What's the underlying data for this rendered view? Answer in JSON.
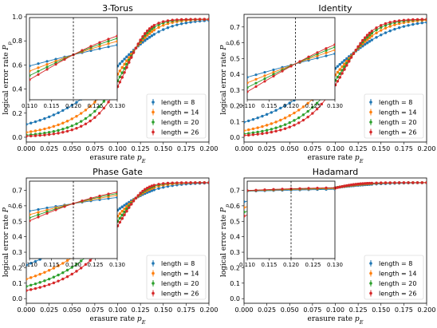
{
  "chart_data": [
    {
      "type": "line",
      "title": "3-Torus",
      "xlabel": "erasure rate p_E",
      "ylabel": "logical error rate P_p",
      "xlim": [
        0.0,
        0.2
      ],
      "ylim": [
        -0.04,
        1.02
      ],
      "xticks": [
        "0.000",
        "0.025",
        "0.050",
        "0.075",
        "0.100",
        "0.125",
        "0.150",
        "0.175",
        "0.200"
      ],
      "yticks": [
        "0.0",
        "0.2",
        "0.4",
        "0.6",
        "0.8",
        "1.0"
      ],
      "legend_position": "lower-right",
      "model": {
        "pc": 0.12,
        "ymax": 0.98,
        "ycross": 0.74,
        "s0": 0.022,
        "exp": 0.65
      },
      "series": [
        {
          "name": "length = 8",
          "color": "#1f77b4",
          "L": 8
        },
        {
          "name": "length = 14",
          "color": "#ff7f0e",
          "L": 14
        },
        {
          "name": "length = 20",
          "color": "#2ca02c",
          "L": 20
        },
        {
          "name": "length = 26",
          "color": "#d62728",
          "L": 26
        }
      ],
      "inset": {
        "xlim": [
          0.11,
          0.13
        ],
        "ylim": [
          0.45,
          0.98
        ],
        "xticks": [
          "0.110",
          "0.115",
          "0.120",
          "0.125",
          "0.130"
        ],
        "yticks": [],
        "threshold": 0.12
      }
    },
    {
      "type": "line",
      "title": "Identity",
      "xlabel": "erasure rate p_E",
      "ylabel": "logical error rate P_p",
      "xlim": [
        0.0,
        0.2
      ],
      "ylim": [
        -0.03,
        0.78
      ],
      "xticks": [
        "0.000",
        "0.025",
        "0.050",
        "0.075",
        "0.100",
        "0.125",
        "0.150",
        "0.175",
        "0.200"
      ],
      "yticks": [
        "0.0",
        "0.1",
        "0.2",
        "0.3",
        "0.4",
        "0.5",
        "0.6",
        "0.7"
      ],
      "legend_position": "lower-right",
      "model": {
        "pc": 0.121,
        "ymax": 0.75,
        "ycross": 0.54,
        "s0": 0.028,
        "exp": 0.6
      },
      "series": [
        {
          "name": "length = 8",
          "color": "#1f77b4",
          "L": 8
        },
        {
          "name": "length = 14",
          "color": "#ff7f0e",
          "L": 14
        },
        {
          "name": "length = 20",
          "color": "#2ca02c",
          "L": 20
        },
        {
          "name": "length = 26",
          "color": "#d62728",
          "L": 26
        }
      ],
      "inset": {
        "xlim": [
          0.11,
          0.13
        ],
        "ylim": [
          0.4,
          0.72
        ],
        "xticks": [
          "0.110",
          "0.115",
          "0.120",
          "0.125",
          "0.130"
        ],
        "yticks": [],
        "threshold": 0.121
      }
    },
    {
      "type": "line",
      "title": "Phase Gate",
      "xlabel": "erasure rate p_E",
      "ylabel": "logical error rate P_p",
      "xlim": [
        0.0,
        0.2
      ],
      "ylim": [
        -0.03,
        0.78
      ],
      "xticks": [
        "0.000",
        "0.025",
        "0.050",
        "0.075",
        "0.100",
        "0.125",
        "0.150",
        "0.175",
        "0.200"
      ],
      "yticks": [
        "0.0",
        "0.1",
        "0.2",
        "0.3",
        "0.4",
        "0.5",
        "0.6",
        "0.7"
      ],
      "legend_position": "lower-right",
      "model": {
        "pc": 0.12,
        "ymax": 0.75,
        "ycross": 0.65,
        "s0": 0.02,
        "exp": 0.65
      },
      "series": [
        {
          "name": "length = 8",
          "color": "#1f77b4",
          "L": 8
        },
        {
          "name": "length = 14",
          "color": "#ff7f0e",
          "L": 14
        },
        {
          "name": "length = 20",
          "color": "#2ca02c",
          "L": 20
        },
        {
          "name": "length = 26",
          "color": "#d62728",
          "L": 26
        }
      ],
      "inset": {
        "xlim": [
          0.11,
          0.13
        ],
        "ylim": [
          0.38,
          0.76
        ],
        "xticks": [
          "0.110",
          "0.115",
          "0.120",
          "0.125",
          "0.130"
        ],
        "yticks": [],
        "threshold": 0.12
      }
    },
    {
      "type": "line",
      "title": "Hadamard",
      "xlabel": "erasure rate p_E",
      "ylabel": "logical error rate P_p",
      "xlim": [
        0.0,
        0.2
      ],
      "ylim": [
        -0.03,
        0.78
      ],
      "xticks": [
        "0.000",
        "0.025",
        "0.050",
        "0.075",
        "0.100",
        "0.125",
        "0.150",
        "0.175",
        "0.200"
      ],
      "yticks": [
        "0.0",
        "0.1",
        "0.2",
        "0.3",
        "0.4",
        "0.5",
        "0.6",
        "0.7"
      ],
      "legend_position": "lower-right",
      "model": {
        "pc": 0.12,
        "ymax": 0.75,
        "ycross": 0.73,
        "s0": 0.026,
        "exp": 0.6,
        "shift": 0.012
      },
      "series": [
        {
          "name": "length = 8",
          "color": "#1f77b4",
          "L": 8
        },
        {
          "name": "length = 14",
          "color": "#ff7f0e",
          "L": 14
        },
        {
          "name": "length = 20",
          "color": "#2ca02c",
          "L": 20
        },
        {
          "name": "length = 26",
          "color": "#d62728",
          "L": 26
        }
      ],
      "inset": {
        "xlim": [
          0.11,
          0.13
        ],
        "ylim": [
          0.35,
          0.78
        ],
        "xticks": [
          "0.110",
          "0.115",
          "0.120",
          "0.125",
          "0.130"
        ],
        "yticks": [],
        "threshold": 0.12
      }
    }
  ]
}
